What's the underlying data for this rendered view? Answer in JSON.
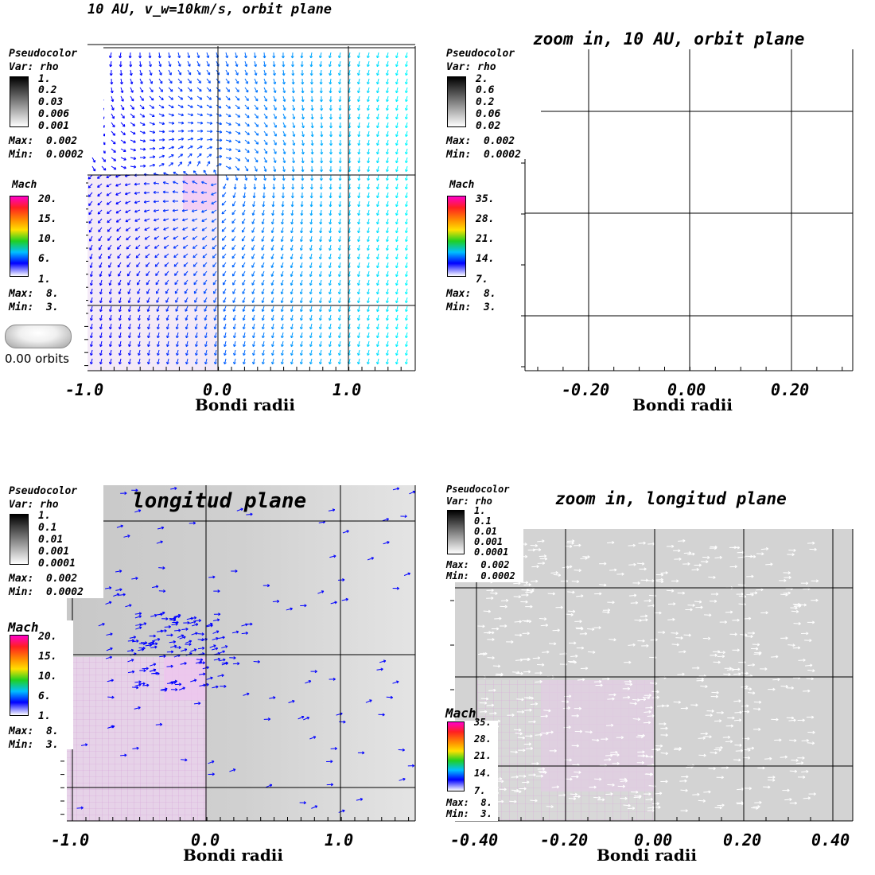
{
  "panels": [
    {
      "title": "10 AU, v_w=10km/s, orbit plane",
      "pseudocolor": {
        "label": "Pseudocolor",
        "var": "Var: rho",
        "ticks": [
          "1.",
          "0.2",
          "0.03",
          "0.006",
          "0.001"
        ],
        "max": "Max:  0.002",
        "min": "Min:  0.0002"
      },
      "mach": {
        "label": "Mach",
        "ticks": [
          "20.",
          "15.",
          "10.",
          "6.",
          "1."
        ],
        "max": "Max:  8.",
        "min": "Min:  3."
      },
      "xticks": [
        "-1.0",
        "0.0",
        "1.0"
      ],
      "xlabel": "Bondi radii",
      "time": "0.00 orbits"
    },
    {
      "title": "zoom in, 10 AU, orbit plane",
      "pseudocolor": {
        "label": "Pseudocolor",
        "var": "Var: rho",
        "ticks": [
          "2.",
          "0.6",
          "0.2",
          "0.06",
          "0.02"
        ],
        "max": "Max:  0.002",
        "min": "Min:  0.0002"
      },
      "mach": {
        "label": "Mach",
        "ticks": [
          "35.",
          "28.",
          "21.",
          "14.",
          "7."
        ],
        "max": "Max:  8.",
        "min": "Min:  3."
      },
      "xticks": [
        "-0.20",
        "0.00",
        "0.20"
      ],
      "xlabel": "Bondi radii"
    },
    {
      "title": "longitud plane",
      "pseudocolor": {
        "label": "Pseudocolor",
        "var": "Var: rho",
        "ticks": [
          "1.",
          "0.1",
          "0.01",
          "0.001",
          "0.0001"
        ],
        "max": "Max:  0.002",
        "min": "Min:  0.0002"
      },
      "mach": {
        "label": "Mach",
        "ticks": [
          "20.",
          "15.",
          "10.",
          "6.",
          "1."
        ],
        "max": "Max:  8.",
        "min": "Min:  3."
      },
      "xticks": [
        "-1.0",
        "0.0",
        "1.0"
      ],
      "xlabel": "Bondi radii"
    },
    {
      "title": "zoom in, longitud plane",
      "pseudocolor": {
        "label": "Pseudocolor",
        "var": "Var: rho",
        "ticks": [
          "1.",
          "0.1",
          "0.01",
          "0.001",
          "0.0001"
        ],
        "max": "Max:  0.002",
        "min": "Min:  0.0002"
      },
      "mach": {
        "label": "Mach",
        "ticks": [
          "35.",
          "28.",
          "21.",
          "14.",
          "7."
        ],
        "max": "Max:  8.",
        "min": "Min:  3."
      },
      "xticks": [
        "-0.40",
        "-0.20",
        "0.00",
        "0.20",
        "0.40"
      ],
      "xlabel": "Bondi radii"
    }
  ],
  "chart_data": [
    {
      "type": "vector-field",
      "title": "10 AU, v_w=10km/s, orbit plane",
      "xlabel": "Bondi radii",
      "xlim": [
        -1.1,
        1.5
      ],
      "variable": "rho",
      "rho_max": 0.002,
      "rho_min": 0.0002,
      "mach_max": 8,
      "mach_min": 3,
      "vector_color": "#0000ff to #00ffff"
    },
    {
      "type": "vector-field",
      "title": "zoom in, 10 AU, orbit plane",
      "xlabel": "Bondi radii",
      "xlim": [
        -0.3,
        0.32
      ],
      "variable": "rho",
      "rho_max": 0.002,
      "rho_min": 0.0002,
      "mach_max": 8,
      "mach_min": 3,
      "note": "empty plot area"
    },
    {
      "type": "vector-field",
      "title": "longitud plane",
      "xlabel": "Bondi radii",
      "xlim": [
        -1.05,
        1.55
      ],
      "variable": "rho",
      "rho_max": 0.002,
      "rho_min": 0.0002,
      "mach_max": 8,
      "mach_min": 3,
      "vector_color": "#0000ff"
    },
    {
      "type": "vector-field",
      "title": "zoom in, longitud plane",
      "xlabel": "Bondi radii",
      "xlim": [
        -0.45,
        0.45
      ],
      "variable": "rho",
      "rho_max": 0.002,
      "rho_min": 0.0002,
      "mach_max": 8,
      "mach_min": 3,
      "vector_color": "#ffffff"
    }
  ]
}
